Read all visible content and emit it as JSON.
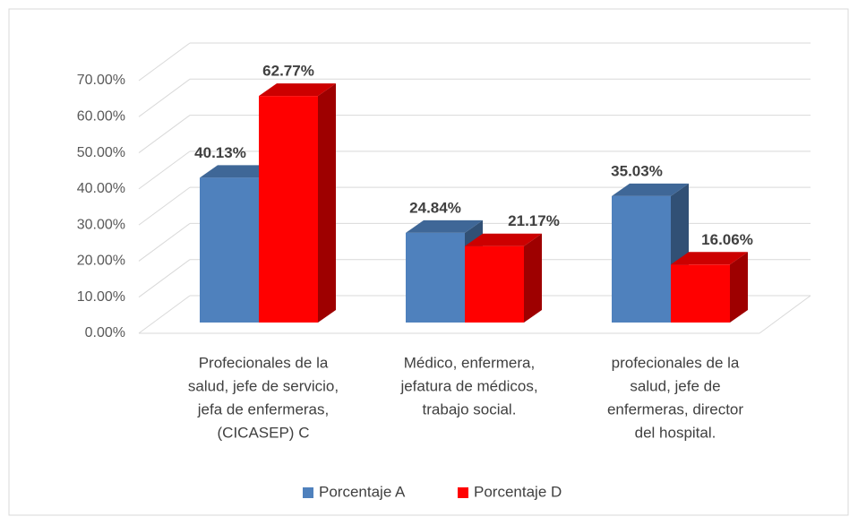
{
  "chart_data": {
    "type": "bar3d",
    "categories": [
      [
        "Profecionales  de la",
        "salud, jefe de servicio,",
        "jefa de enfermeras,",
        "(CICASEP) C"
      ],
      [
        "Médico, enfermera,",
        "jefatura de médicos,",
        "trabajo social."
      ],
      [
        "profecionales de la",
        "salud, jefe de",
        "enfermeras, director",
        "del hospital."
      ]
    ],
    "series": [
      {
        "name": "Porcentaje A",
        "color": "#4f81bd",
        "values": [
          40.13,
          24.84,
          35.03
        ],
        "value_labels": [
          "40.13%",
          "24.84%",
          "35.03%"
        ]
      },
      {
        "name": "Porcentaje D",
        "color": "#ff0000",
        "values": [
          62.77,
          21.17,
          16.06
        ],
        "value_labels": [
          "62.77%",
          "21.17%",
          "16.06%"
        ]
      }
    ],
    "ylim": [
      0,
      70
    ],
    "yticks": [
      {
        "value": 0,
        "label": "0.00%"
      },
      {
        "value": 10,
        "label": "10.00%"
      },
      {
        "value": 20,
        "label": "20.00%"
      },
      {
        "value": 30,
        "label": "30.00%"
      },
      {
        "value": 40,
        "label": "40.00%"
      },
      {
        "value": 50,
        "label": "50.00%"
      },
      {
        "value": 60,
        "label": "60.00%"
      },
      {
        "value": 70,
        "label": "70.00%"
      }
    ],
    "grid": true,
    "legend": "bottom"
  }
}
